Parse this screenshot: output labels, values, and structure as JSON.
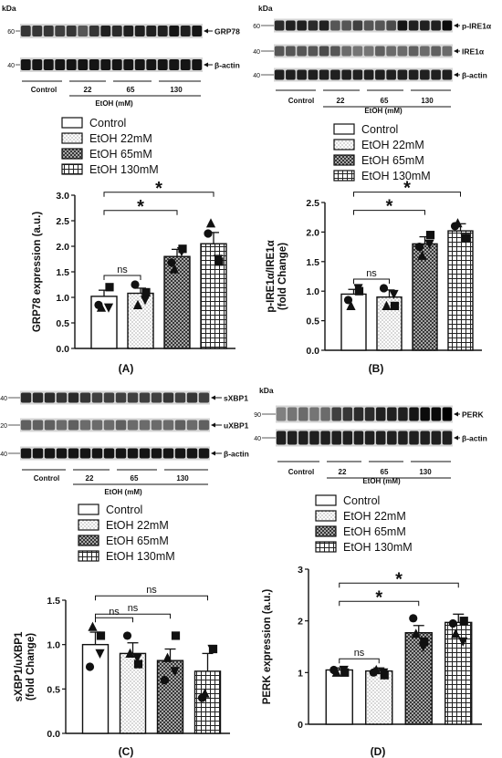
{
  "panels": [
    {
      "id": "A",
      "letter": "(A)",
      "blot": {
        "kda_label": "kDa",
        "bands": [
          {
            "marker": "60",
            "name": "GRP78",
            "intensity": [
              0.75,
              0.75,
              0.75,
              0.7,
              0.75,
              0.6,
              0.75,
              0.85,
              0.8,
              0.85,
              0.85,
              0.85,
              0.85,
              0.9,
              0.85,
              0.9
            ]
          },
          {
            "marker": "40",
            "name": "β-actin",
            "intensity": [
              0.9,
              0.9,
              0.9,
              0.9,
              0.9,
              0.9,
              0.9,
              0.9,
              0.9,
              0.9,
              0.9,
              0.9,
              0.9,
              0.9,
              0.9,
              0.9
            ]
          }
        ],
        "groups": [
          "Control",
          "22",
          "65",
          "130"
        ],
        "treatment_label": "EtOH (mM)"
      },
      "legend": [
        "Control",
        "EtOH 22mM",
        "EtOH 65mM",
        "EtOH 130mM"
      ],
      "chart_data": {
        "type": "bar",
        "categories": [
          "Control",
          "EtOH 22mM",
          "EtOH 65mM",
          "EtOH 130mM"
        ],
        "values": [
          1.02,
          1.08,
          1.8,
          2.05
        ],
        "errors": [
          0.12,
          0.1,
          0.14,
          0.22
        ],
        "points": [
          [
            0.85,
            1.2,
            0.8,
            0.8
          ],
          [
            1.25,
            1.1,
            0.85,
            0.95
          ],
          [
            1.68,
            1.95,
            1.55,
            1.9
          ],
          [
            2.25,
            1.7,
            2.45,
            1.75
          ]
        ],
        "markers": [
          "circle",
          "square",
          "triangle-up",
          "triangle-down"
        ],
        "ylabel": "GRP78 expression (a.u.)",
        "ylabel_lines": [
          "GRP78 expression (a.u.)"
        ],
        "ylim": [
          0,
          3.0
        ],
        "yticks": [
          "0.0",
          "0.5",
          "1.0",
          "1.5",
          "2.0",
          "2.5",
          "3.0"
        ],
        "comparisons": [
          {
            "from": 0,
            "to": 1,
            "label": "ns"
          },
          {
            "from": 0,
            "to": 2,
            "label": "*"
          },
          {
            "from": 0,
            "to": 3,
            "label": "*"
          }
        ]
      }
    },
    {
      "id": "B",
      "letter": "(B)",
      "blot": {
        "kda_label": "kDa",
        "bands": [
          {
            "marker": "60",
            "name": "p-IRE1α",
            "intensity": [
              0.8,
              0.85,
              0.85,
              0.8,
              0.85,
              0.6,
              0.6,
              0.7,
              0.6,
              0.6,
              0.65,
              0.9,
              0.85,
              0.85,
              0.85,
              0.95
            ]
          },
          {
            "marker": "40",
            "name": "IRE1α",
            "intensity": [
              0.6,
              0.6,
              0.6,
              0.6,
              0.65,
              0.6,
              0.5,
              0.45,
              0.45,
              0.55,
              0.5,
              0.5,
              0.55,
              0.5,
              0.55,
              0.5
            ]
          },
          {
            "marker": "40",
            "name": "β-actin",
            "intensity": [
              0.85,
              0.85,
              0.85,
              0.85,
              0.85,
              0.85,
              0.85,
              0.85,
              0.85,
              0.85,
              0.85,
              0.85,
              0.85,
              0.85,
              0.85,
              0.85
            ]
          }
        ],
        "groups": [
          "Control",
          "22",
          "65",
          "130"
        ],
        "treatment_label": "EtOH (mM)"
      },
      "legend": [
        "Control",
        "EtOH 22mM",
        "EtOH 65mM",
        "EtOH 130mM"
      ],
      "chart_data": {
        "type": "bar",
        "categories": [
          "Control",
          "EtOH 22mM",
          "EtOH 65mM",
          "EtOH 130mM"
        ],
        "values": [
          0.95,
          0.9,
          1.8,
          2.02
        ],
        "errors": [
          0.08,
          0.12,
          0.12,
          0.12
        ],
        "points": [
          [
            0.85,
            1.0,
            0.75,
            1.05
          ],
          [
            1.05,
            0.75,
            0.75,
            0.95
          ],
          [
            1.75,
            1.95,
            1.6,
            1.8
          ],
          [
            2.1,
            1.9,
            2.15,
            1.9
          ]
        ],
        "markers": [
          "circle",
          "square",
          "triangle-up",
          "triangle-down"
        ],
        "ylabel": "p-IRE1α/IRE1α (fold Change)",
        "ylabel_lines": [
          "p-IRE1α/IRE1α",
          "(fold Change)"
        ],
        "ylim": [
          0,
          2.5
        ],
        "yticks": [
          "0.0",
          "0.5",
          "1.0",
          "1.5",
          "2.0",
          "2.5"
        ],
        "comparisons": [
          {
            "from": 0,
            "to": 1,
            "label": "ns"
          },
          {
            "from": 0,
            "to": 2,
            "label": "*"
          },
          {
            "from": 0,
            "to": 3,
            "label": "*"
          }
        ]
      }
    },
    {
      "id": "C",
      "letter": "(C)",
      "blot": {
        "kda_label": "",
        "bands": [
          {
            "marker": "40",
            "name": "sXBP1",
            "intensity": [
              0.8,
              0.8,
              0.8,
              0.75,
              0.8,
              0.75,
              0.7,
              0.7,
              0.7,
              0.7,
              0.7,
              0.7,
              0.75,
              0.7,
              0.75,
              0.7
            ]
          },
          {
            "marker": "20",
            "name": "uXBP1",
            "intensity": [
              0.55,
              0.55,
              0.55,
              0.5,
              0.55,
              0.5,
              0.5,
              0.5,
              0.55,
              0.5,
              0.5,
              0.5,
              0.5,
              0.55,
              0.5,
              0.55
            ]
          },
          {
            "marker": "40",
            "name": "β-actin",
            "intensity": [
              0.9,
              0.9,
              0.9,
              0.9,
              0.9,
              0.9,
              0.9,
              0.9,
              0.9,
              0.9,
              0.9,
              0.9,
              0.9,
              0.9,
              0.9,
              0.9
            ]
          }
        ],
        "groups": [
          "Control",
          "22",
          "65",
          "130"
        ],
        "treatment_label": "EtOH (mM)"
      },
      "legend": [
        "Control",
        "EtOH 22mM",
        "EtOH 65mM",
        "EtOH 130mM"
      ],
      "chart_data": {
        "type": "bar",
        "categories": [
          "Control",
          "EtOH 22mM",
          "EtOH 65mM",
          "EtOH 130mM"
        ],
        "values": [
          1.0,
          0.9,
          0.82,
          0.7
        ],
        "errors": [
          0.14,
          0.12,
          0.13,
          0.2
        ],
        "points": [
          [
            0.75,
            1.1,
            1.2,
            0.9
          ],
          [
            1.1,
            0.78,
            0.9,
            0.85
          ],
          [
            0.6,
            1.1,
            0.85,
            0.7
          ],
          [
            0.4,
            0.95,
            0.45,
            0.95
          ]
        ],
        "markers": [
          "circle",
          "square",
          "triangle-up",
          "triangle-down"
        ],
        "ylabel": "sXBP1/uXBP1 (fold Change)",
        "ylabel_lines": [
          "sXBP1/uXBP1",
          "(fold Change)"
        ],
        "ylim": [
          0,
          1.5
        ],
        "yticks": [
          "0.0",
          "0.5",
          "1.0",
          "1.5"
        ],
        "comparisons": [
          {
            "from": 0,
            "to": 1,
            "label": "ns"
          },
          {
            "from": 0,
            "to": 2,
            "label": "ns"
          },
          {
            "from": 0,
            "to": 3,
            "label": "ns"
          }
        ]
      }
    },
    {
      "id": "D",
      "letter": "(D)",
      "blot": {
        "kda_label": "kDa",
        "bands": [
          {
            "marker": "90",
            "name": "PERK",
            "intensity": [
              0.4,
              0.45,
              0.5,
              0.45,
              0.5,
              0.7,
              0.75,
              0.8,
              0.8,
              0.85,
              0.85,
              0.85,
              0.9,
              0.95,
              0.95,
              1.0
            ]
          },
          {
            "marker": "40",
            "name": "β-actin",
            "intensity": [
              0.85,
              0.85,
              0.85,
              0.85,
              0.85,
              0.85,
              0.85,
              0.85,
              0.85,
              0.85,
              0.85,
              0.85,
              0.85,
              0.85,
              0.85,
              0.85
            ]
          }
        ],
        "groups": [
          "Control",
          "22",
          "65",
          "130"
        ],
        "treatment_label": "EtOH (mM)"
      },
      "legend": [
        "Control",
        "EtOH 22mM",
        "EtOH 65mM",
        "EtOH 130mM"
      ],
      "chart_data": {
        "type": "bar",
        "categories": [
          "Control",
          "EtOH 22mM",
          "EtOH 65mM",
          "EtOH 130mM"
        ],
        "values": [
          1.05,
          1.03,
          1.77,
          1.97
        ],
        "errors": [
          0.04,
          0.06,
          0.14,
          0.16
        ],
        "points": [
          [
            1.05,
            1.0,
            1.0,
            1.05
          ],
          [
            1.0,
            0.95,
            1.05,
            1.0
          ],
          [
            2.05,
            1.6,
            1.75,
            1.5
          ],
          [
            1.95,
            2.0,
            1.75,
            1.6
          ]
        ],
        "markers": [
          "circle",
          "square",
          "triangle-up",
          "triangle-down"
        ],
        "ylabel": "PERK expression (a.u.)",
        "ylabel_lines": [
          "PERK expression (a.u.)"
        ],
        "ylim": [
          0,
          3
        ],
        "yticks": [
          "0",
          "1",
          "2",
          "3"
        ],
        "comparisons": [
          {
            "from": 0,
            "to": 1,
            "label": "ns"
          },
          {
            "from": 0,
            "to": 2,
            "label": "*"
          },
          {
            "from": 0,
            "to": 3,
            "label": "*"
          }
        ]
      }
    }
  ]
}
